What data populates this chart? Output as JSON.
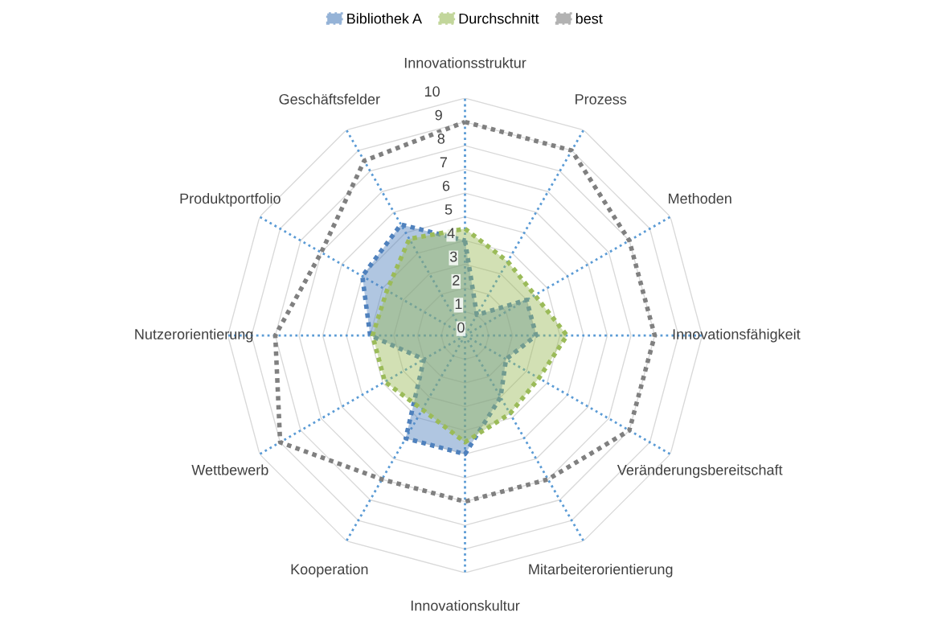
{
  "chart_data": {
    "type": "radar",
    "categories": [
      "Innovationsstruktur",
      "Prozess",
      "Methoden",
      "Innovationsfähigkeit",
      "Veränderungsbereitschaft",
      "Mitarbeiterorientierung",
      "Innovationskultur",
      "Kooperation",
      "Wettbewerb",
      "Nutzerorientierung",
      "Produktportfolio",
      "Geschäftsfelder"
    ],
    "series": [
      {
        "name": "Bibliothek A",
        "color": "#4f81bd",
        "values": [
          4,
          1,
          3,
          3,
          2,
          3,
          5,
          5,
          2,
          4,
          5,
          5.4
        ]
      },
      {
        "name": "Durchschnitt",
        "color": "#9bbb59",
        "values": [
          4.5,
          3.6,
          3.4,
          4.3,
          3.6,
          3.8,
          4.5,
          3.6,
          3.9,
          3.9,
          3.8,
          4.7
        ]
      },
      {
        "name": "best",
        "color": "#808080",
        "values": [
          9,
          9,
          8,
          8,
          8,
          7,
          7,
          7,
          9,
          8,
          7,
          8.5
        ]
      }
    ],
    "ylim": [
      0,
      10
    ],
    "yticks": [
      0,
      1,
      2,
      3,
      4,
      5,
      6,
      7,
      8,
      9,
      10
    ],
    "grid": true,
    "legend": "top",
    "line_style": "dotted",
    "marker": "none"
  }
}
